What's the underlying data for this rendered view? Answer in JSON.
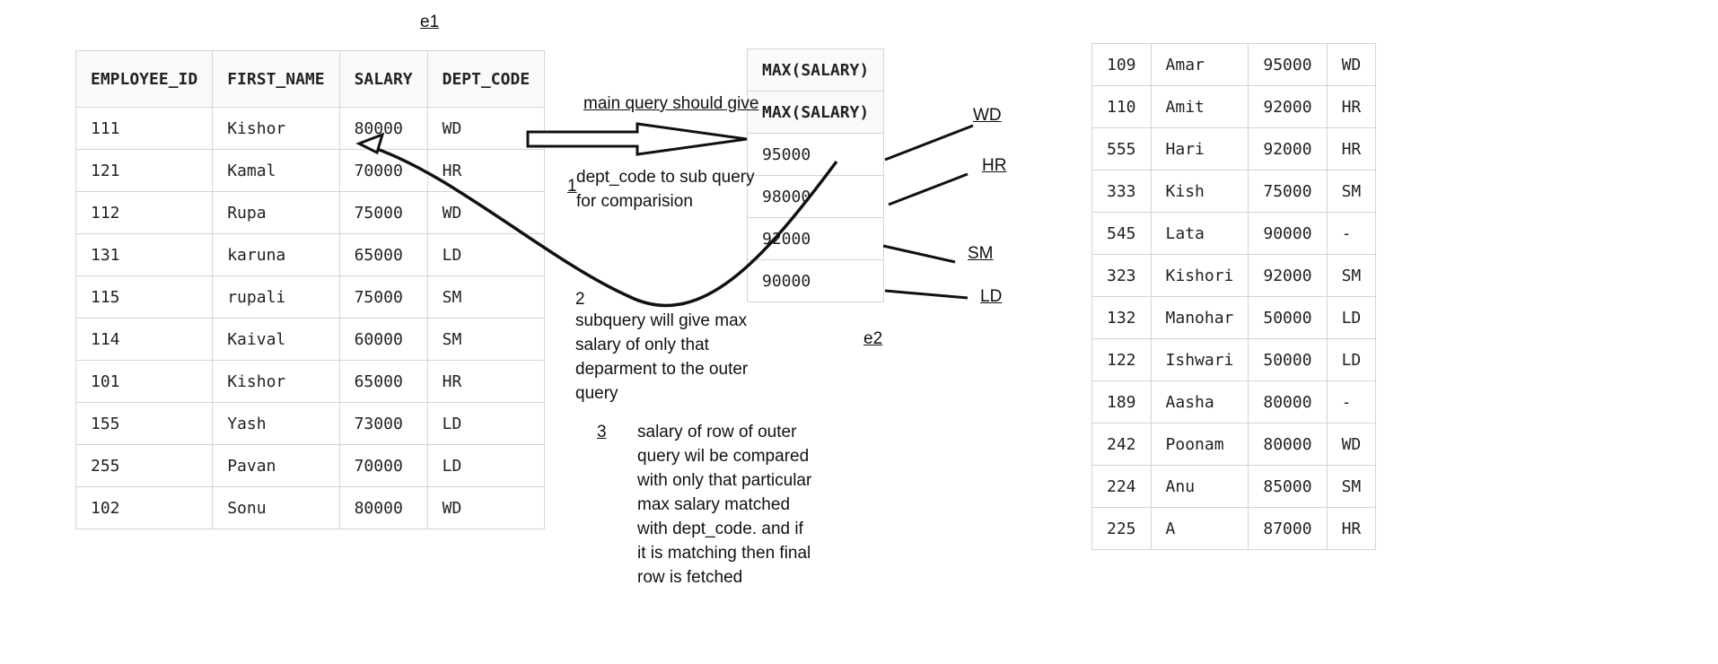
{
  "labels": {
    "e1": "e1",
    "e2": "e2"
  },
  "e1": {
    "columns": [
      "EMPLOYEE_ID",
      "FIRST_NAME",
      "SALARY",
      "DEPT_CODE"
    ],
    "rows": [
      [
        "111",
        "Kishor",
        "80000",
        "WD"
      ],
      [
        "121",
        "Kamal",
        "70000",
        "HR"
      ],
      [
        "112",
        "Rupa",
        "75000",
        "WD"
      ],
      [
        "131",
        "karuna",
        "65000",
        "LD"
      ],
      [
        "115",
        "rupali",
        "75000",
        "SM"
      ],
      [
        "114",
        "Kaival",
        "60000",
        "SM"
      ],
      [
        "101",
        "Kishor",
        "65000",
        "HR"
      ],
      [
        "155",
        "Yash",
        "73000",
        "LD"
      ],
      [
        "255",
        "Pavan",
        "70000",
        "LD"
      ],
      [
        "102",
        "Sonu",
        "80000",
        "WD"
      ]
    ]
  },
  "e2": {
    "header_top": "MAX(SALARY)",
    "header": "MAX(SALARY)",
    "values": [
      "95000",
      "98000",
      "92000",
      "90000"
    ],
    "dept_labels": [
      "WD",
      "HR",
      "SM",
      "LD"
    ]
  },
  "more_rows": [
    [
      "109",
      "Amar",
      "95000",
      "WD"
    ],
    [
      "110",
      "Amit",
      "92000",
      "HR"
    ],
    [
      "555",
      "Hari",
      "92000",
      "HR"
    ],
    [
      "333",
      "Kish",
      "75000",
      "SM"
    ],
    [
      "545",
      "Lata",
      "90000",
      "-"
    ],
    [
      "323",
      "Kishori",
      "92000",
      "SM"
    ],
    [
      "132",
      "Manohar",
      "50000",
      "LD"
    ],
    [
      "122",
      "Ishwari",
      "50000",
      "LD"
    ],
    [
      "189",
      "Aasha",
      "80000",
      "-"
    ],
    [
      "242",
      "Poonam",
      "80000",
      "WD"
    ],
    [
      "224",
      "Anu",
      "85000",
      "SM"
    ],
    [
      "225",
      "A",
      "87000",
      "HR"
    ]
  ],
  "notes": {
    "main_query": "main query should give",
    "step1_num": "1",
    "step1_line1": "dept_code to sub query",
    "step1_line2": "for comparision",
    "step2_num": "2",
    "step2_line1": "subquery will give max",
    "step2_line2": "salary of only that",
    "step2_line3": "deparment to the outer",
    "step2_line4": "query",
    "step3_num": "3",
    "step3_line1": "salary of row of outer",
    "step3_line2": "query wil be compared",
    "step3_line3": "with only that particular",
    "step3_line4": "max salary matched",
    "step3_line5": "with dept_code. and if",
    "step3_line6": "it is matching then final",
    "step3_line7": "row is fetched"
  }
}
